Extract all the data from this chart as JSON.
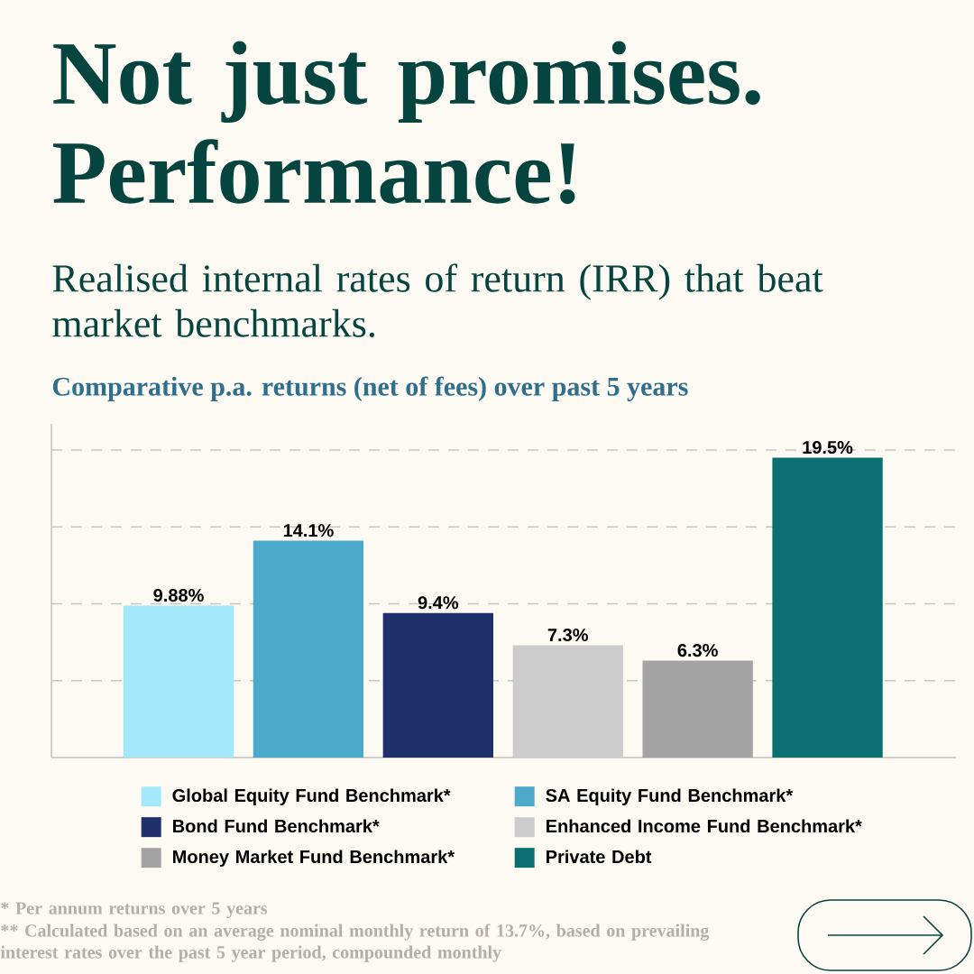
{
  "chart_data": {
    "type": "bar",
    "title": "Not just promises. Performance!",
    "subtitle": "Realised internal rates of return (IRR) that beat market benchmarks.",
    "annotations": [
      "Comparative p.a. returns (net of fees) over past 5 years",
      "*    Per annum returns over 5 years",
      "**  Calculated based on an average nominal monthly return of 13.7%, based on prevailing interest rates over the past 5 year period, compounded monthly"
    ],
    "categories": [
      null
    ],
    "series": [
      {
        "name": "Global Equity Fund Benchmark*",
        "color": "#a3e9fb",
        "values": [
          9.88
        ],
        "value_labels": [
          "9.88%"
        ]
      },
      {
        "name": "SA Equity Fund Benchmark*",
        "color": "#4eaacb",
        "values": [
          14.1
        ],
        "value_labels": [
          "14.1%"
        ]
      },
      {
        "name": "Bond Fund Benchmark*",
        "color": "#20306b",
        "values": [
          9.4
        ],
        "value_labels": [
          "9.4%"
        ]
      },
      {
        "name": "Enhanced Income Fund Benchmark*",
        "color": "#cccccc",
        "values": [
          7.3
        ],
        "value_labels": [
          "7.3%"
        ]
      },
      {
        "name": "Money Market Fund Benchmark*",
        "color": "#a3a3a3",
        "values": [
          6.3
        ],
        "value_labels": [
          "6.3%"
        ]
      },
      {
        "name": "Private Debt",
        "color": "#0b6e71",
        "values": [
          19.5
        ],
        "value_labels": [
          "19.5%"
        ]
      }
    ],
    "ylim": [
      0,
      21.7
    ],
    "yticks": [
      {
        "value": 5,
        "label": null
      },
      {
        "value": 10,
        "label": null
      },
      {
        "value": 15,
        "label": null
      },
      {
        "value": 20,
        "label": null
      }
    ],
    "grid": "y",
    "legend": "bottom"
  }
}
